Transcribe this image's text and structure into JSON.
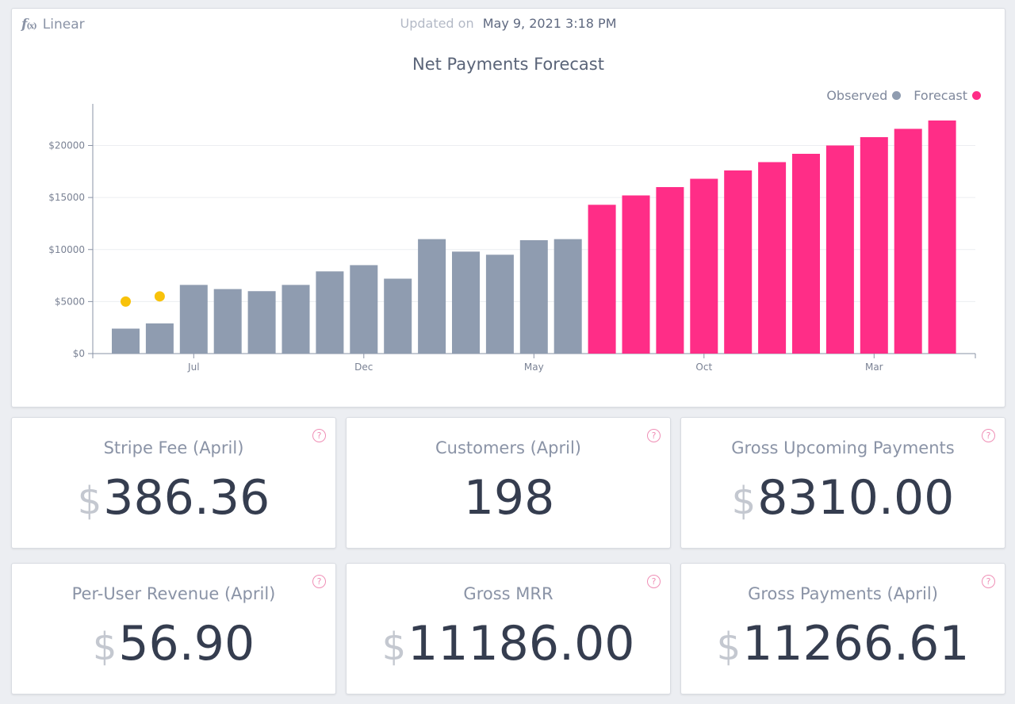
{
  "header": {
    "method_icon": "fx-icon",
    "method_label": "Linear",
    "updated_label": "Updated on",
    "updated_value": "May 9, 2021 3:18 PM"
  },
  "chart_data": {
    "type": "bar",
    "title": "Net Payments Forecast",
    "xlabel": "",
    "ylabel": "",
    "ylim": [
      0,
      24000
    ],
    "y_ticks": [
      0,
      5000,
      10000,
      15000,
      20000
    ],
    "y_tick_labels": [
      "$0",
      "$5000",
      "$10000",
      "$15000",
      "$20000"
    ],
    "x_tick_labels": [
      {
        "label": "Jul",
        "after_bar": 2.5
      },
      {
        "label": "Dec",
        "after_bar": 7.5
      },
      {
        "label": "May",
        "after_bar": 12.5
      },
      {
        "label": "Oct",
        "after_bar": 17.5
      },
      {
        "label": "Mar",
        "after_bar": 22.5
      }
    ],
    "grid": true,
    "legend_position": "top-right",
    "series": [
      {
        "name": "Observed",
        "color": "#8f9cb0",
        "values": [
          2400,
          2900,
          6600,
          6200,
          6000,
          6600,
          7900,
          8500,
          7200,
          11000,
          9800,
          9500,
          10900,
          11000
        ]
      },
      {
        "name": "Forecast",
        "color": "#ff2d87",
        "values": [
          14300,
          15200,
          16000,
          16800,
          17600,
          18400,
          19200,
          20000,
          20800,
          21600,
          22400
        ]
      }
    ],
    "markers": {
      "color": "#f8c20a",
      "points": [
        {
          "bar_index": 0,
          "value": 5000
        },
        {
          "bar_index": 1,
          "value": 5500
        }
      ]
    }
  },
  "stats": [
    {
      "title": "Stripe Fee (April)",
      "currency": "$",
      "value": "386.36"
    },
    {
      "title": "Customers (April)",
      "currency": "",
      "value": "198"
    },
    {
      "title": "Gross Upcoming Payments",
      "currency": "$",
      "value": "8310.00"
    },
    {
      "title": "Per-User Revenue (April)",
      "currency": "$",
      "value": "56.90"
    },
    {
      "title": "Gross MRR",
      "currency": "$",
      "value": "11186.00"
    },
    {
      "title": "Gross Payments (April)",
      "currency": "$",
      "value": "11266.61"
    }
  ],
  "help_icon_glyph": "?"
}
